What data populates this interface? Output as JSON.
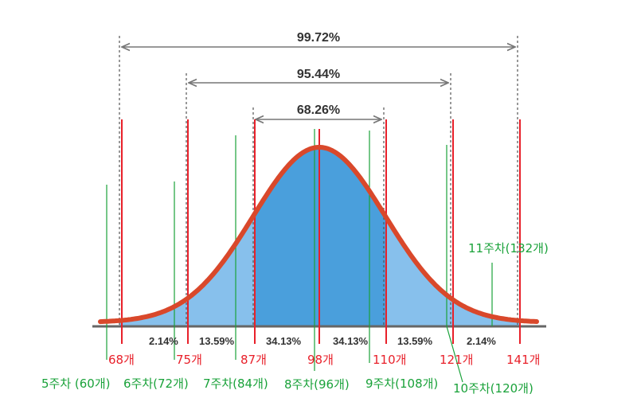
{
  "ranges": {
    "r1": "99.72%",
    "r2": "95.44%",
    "r3": "68.26%"
  },
  "segments": [
    "2.14%",
    "13.59%",
    "34.13%",
    "34.13%",
    "13.59%",
    "2.14%"
  ],
  "sigma_labels": [
    "68개",
    "75개",
    "87개",
    "98개",
    "110개",
    "121개",
    "141개"
  ],
  "week_labels": [
    "5주차 (60개)",
    "6주차(72개)",
    "7주차(84개)",
    "8주차(96개)",
    "9주차(108개)",
    "10주차(120개)",
    "11주차(132개)"
  ],
  "colors": {
    "curve": "#d9482b",
    "inner_fill": "#4a9fdc",
    "outer_fill": "#87c0ec",
    "sigma_line": "#e8202a",
    "week_line": "#1aa23a",
    "axis": "#666666",
    "dashed": "#555555"
  }
}
